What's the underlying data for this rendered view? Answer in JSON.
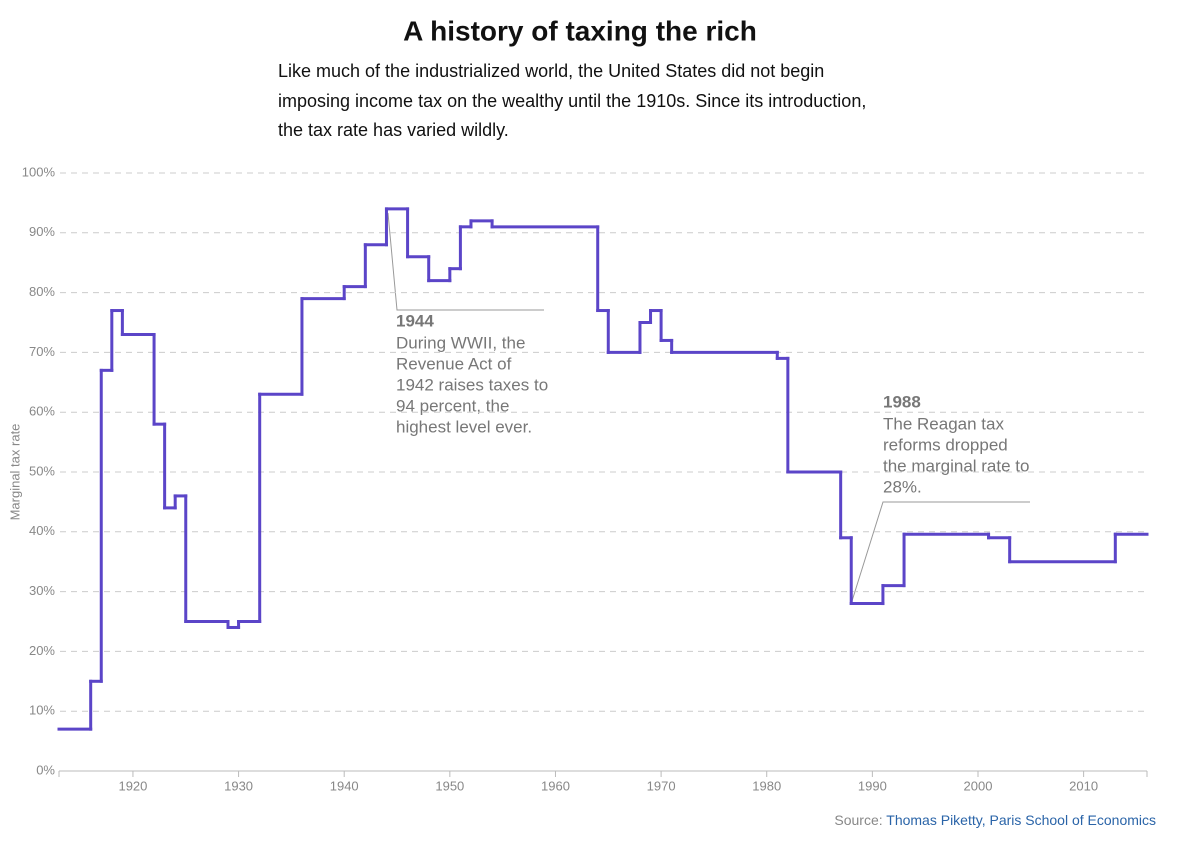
{
  "chart_data": {
    "type": "step",
    "title": "A history of taxing the rich",
    "subtitle": [
      "Like much of the industrialized world, the United States did not begin",
      "imposing income tax on the wealthy until the 1910s. Since its introduction,",
      "the tax rate has varied wildly."
    ],
    "y_label": "Marginal tax rate",
    "xlim": [
      1913,
      2016
    ],
    "xticks": [
      1920,
      1930,
      1940,
      1950,
      1960,
      1970,
      1980,
      1990,
      2000,
      2010
    ],
    "ylim": [
      0,
      100
    ],
    "yticks": [
      {
        "value": 0,
        "label": "0%"
      },
      {
        "value": 10,
        "label": "10%"
      },
      {
        "value": 20,
        "label": "20%"
      },
      {
        "value": 30,
        "label": "30%"
      },
      {
        "value": 40,
        "label": "40%"
      },
      {
        "value": 50,
        "label": "50%"
      },
      {
        "value": 60,
        "label": "60%"
      },
      {
        "value": 70,
        "label": "70%"
      },
      {
        "value": 80,
        "label": "80%"
      },
      {
        "value": 90,
        "label": "90%"
      },
      {
        "value": 100,
        "label": "100%"
      }
    ],
    "grid": true,
    "series": [
      {
        "color": "#5b45c8",
        "x": [
          1913,
          1916,
          1917,
          1918,
          1919,
          1922,
          1923,
          1924,
          1925,
          1929,
          1930,
          1932,
          1936,
          1940,
          1942,
          1944,
          1946,
          1948,
          1950,
          1951,
          1952,
          1954,
          1964,
          1965,
          1968,
          1969,
          1970,
          1971,
          1981,
          1982,
          1987,
          1988,
          1991,
          1993,
          2001,
          2003,
          2013
        ],
        "values": [
          7,
          15,
          67,
          77,
          73,
          58,
          44,
          46,
          25,
          24,
          25,
          63,
          79,
          81,
          88,
          94,
          86,
          82,
          84,
          91,
          92,
          91,
          77,
          70,
          75,
          77,
          72,
          70,
          69,
          50,
          39,
          28,
          31,
          39.6,
          39,
          35,
          39.6
        ]
      }
    ],
    "annotations": [
      {
        "title": "1944",
        "lines": [
          "During WWII, the",
          "Revenue Act of",
          "1942 raises taxes to",
          "94 percent, the",
          "highest level ever."
        ]
      },
      {
        "title": "1988",
        "lines": [
          "The Reagan tax",
          "reforms dropped",
          "the marginal rate to",
          "28%."
        ]
      }
    ],
    "source_label": "Source:",
    "source_name": "Thomas Piketty, Paris School of Economics"
  }
}
